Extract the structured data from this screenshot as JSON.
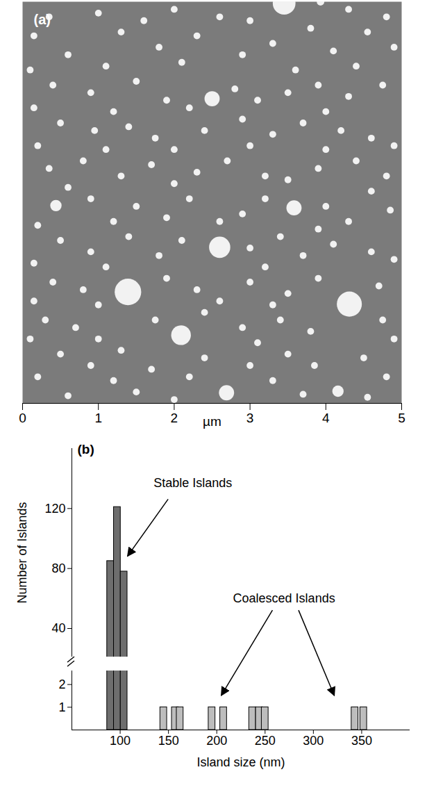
{
  "chart_data": [
    {
      "type": "scatter",
      "label": "(a)",
      "xlabel": "µm",
      "xlim": [
        0,
        5
      ],
      "xticks": [
        0,
        1,
        2,
        3,
        4,
        5
      ],
      "ylim": [
        0,
        5.3
      ],
      "tick_labels": "x",
      "color": "#f2f2f2",
      "points": [
        [
          3.45,
          5.28,
          0.3
        ],
        [
          2.5,
          4.02,
          0.2
        ],
        [
          3.58,
          2.58,
          0.2
        ],
        [
          0.44,
          2.61,
          0.15
        ],
        [
          2.6,
          2.06,
          0.28
        ],
        [
          1.39,
          1.47,
          0.35
        ],
        [
          4.31,
          1.31,
          0.33
        ],
        [
          2.09,
          0.9,
          0.26
        ],
        [
          2.69,
          0.14,
          0.2
        ],
        [
          4.16,
          0.16,
          0.15
        ],
        [
          3.93,
          5.3,
          0.1
        ],
        [
          0.35,
          5.1,
          0.09
        ],
        [
          1.0,
          5.15,
          0.09
        ],
        [
          1.6,
          5.05,
          0.09
        ],
        [
          2.0,
          5.2,
          0.09
        ],
        [
          2.6,
          5.1,
          0.09
        ],
        [
          3.0,
          5.05,
          0.09
        ],
        [
          4.3,
          5.2,
          0.09
        ],
        [
          4.8,
          5.1,
          0.09
        ],
        [
          0.15,
          4.85,
          0.09
        ],
        [
          1.3,
          4.9,
          0.09
        ],
        [
          2.3,
          4.85,
          0.09
        ],
        [
          3.8,
          4.95,
          0.09
        ],
        [
          4.55,
          4.9,
          0.09
        ],
        [
          0.6,
          4.6,
          0.09
        ],
        [
          1.8,
          4.7,
          0.09
        ],
        [
          2.9,
          4.6,
          0.09
        ],
        [
          3.3,
          4.75,
          0.09
        ],
        [
          4.1,
          4.65,
          0.09
        ],
        [
          4.9,
          4.7,
          0.09
        ],
        [
          0.1,
          4.4,
          0.09
        ],
        [
          1.1,
          4.45,
          0.09
        ],
        [
          2.1,
          4.5,
          0.09
        ],
        [
          3.6,
          4.4,
          0.09
        ],
        [
          4.4,
          4.45,
          0.09
        ],
        [
          0.4,
          4.2,
          0.09
        ],
        [
          0.9,
          4.1,
          0.09
        ],
        [
          1.5,
          4.25,
          0.09
        ],
        [
          1.9,
          4.0,
          0.09
        ],
        [
          2.8,
          4.15,
          0.09
        ],
        [
          3.1,
          4.0,
          0.09
        ],
        [
          3.5,
          4.1,
          0.09
        ],
        [
          3.9,
          4.2,
          0.09
        ],
        [
          4.3,
          4.05,
          0.09
        ],
        [
          4.75,
          4.2,
          0.09
        ],
        [
          0.15,
          3.9,
          0.09
        ],
        [
          1.2,
          3.85,
          0.09
        ],
        [
          2.2,
          3.9,
          0.09
        ],
        [
          4.0,
          3.85,
          0.09
        ],
        [
          0.5,
          3.7,
          0.09
        ],
        [
          0.95,
          3.6,
          0.09
        ],
        [
          1.4,
          3.65,
          0.09
        ],
        [
          1.75,
          3.5,
          0.09
        ],
        [
          2.4,
          3.6,
          0.09
        ],
        [
          2.9,
          3.75,
          0.09
        ],
        [
          3.3,
          3.55,
          0.09
        ],
        [
          3.7,
          3.7,
          0.09
        ],
        [
          4.2,
          3.6,
          0.09
        ],
        [
          4.6,
          3.5,
          0.09
        ],
        [
          0.2,
          3.4,
          0.09
        ],
        [
          1.1,
          3.35,
          0.09
        ],
        [
          2.0,
          3.35,
          0.09
        ],
        [
          3.0,
          3.4,
          0.09
        ],
        [
          4.0,
          3.35,
          0.09
        ],
        [
          4.9,
          3.4,
          0.09
        ],
        [
          0.35,
          3.1,
          0.09
        ],
        [
          0.8,
          3.2,
          0.09
        ],
        [
          1.3,
          3.0,
          0.09
        ],
        [
          1.7,
          3.15,
          0.09
        ],
        [
          2.3,
          3.05,
          0.09
        ],
        [
          2.7,
          3.2,
          0.09
        ],
        [
          3.2,
          3.0,
          0.09
        ],
        [
          3.9,
          3.1,
          0.09
        ],
        [
          4.4,
          3.2,
          0.09
        ],
        [
          4.8,
          3.0,
          0.09
        ],
        [
          0.6,
          2.85,
          0.09
        ],
        [
          2.0,
          2.9,
          0.09
        ],
        [
          3.5,
          2.95,
          0.09
        ],
        [
          4.6,
          2.8,
          0.09
        ],
        [
          0.9,
          2.7,
          0.09
        ],
        [
          1.5,
          2.6,
          0.09
        ],
        [
          1.9,
          2.45,
          0.09
        ],
        [
          2.2,
          2.7,
          0.09
        ],
        [
          2.9,
          2.5,
          0.09
        ],
        [
          3.2,
          2.7,
          0.09
        ],
        [
          4.0,
          2.6,
          0.09
        ],
        [
          4.3,
          2.4,
          0.09
        ],
        [
          4.85,
          2.55,
          0.09
        ],
        [
          0.2,
          2.35,
          0.09
        ],
        [
          1.2,
          2.4,
          0.09
        ],
        [
          2.6,
          2.4,
          0.09
        ],
        [
          3.9,
          2.3,
          0.09
        ],
        [
          0.5,
          2.15,
          0.09
        ],
        [
          0.9,
          2.0,
          0.09
        ],
        [
          1.4,
          2.2,
          0.09
        ],
        [
          1.8,
          1.95,
          0.09
        ],
        [
          2.1,
          2.15,
          0.09
        ],
        [
          3.0,
          2.05,
          0.09
        ],
        [
          3.4,
          2.2,
          0.09
        ],
        [
          3.7,
          1.95,
          0.09
        ],
        [
          4.1,
          2.1,
          0.09
        ],
        [
          4.6,
          2.0,
          0.09
        ],
        [
          0.15,
          1.85,
          0.09
        ],
        [
          1.1,
          1.8,
          0.09
        ],
        [
          3.2,
          1.8,
          0.09
        ],
        [
          4.9,
          1.9,
          0.09
        ],
        [
          0.4,
          1.6,
          0.09
        ],
        [
          0.8,
          1.5,
          0.09
        ],
        [
          1.9,
          1.65,
          0.09
        ],
        [
          2.3,
          1.5,
          0.09
        ],
        [
          3.0,
          1.6,
          0.09
        ],
        [
          3.5,
          1.45,
          0.09
        ],
        [
          3.9,
          1.65,
          0.09
        ],
        [
          4.7,
          1.55,
          0.09
        ],
        [
          0.15,
          1.35,
          0.09
        ],
        [
          1.0,
          1.3,
          0.09
        ],
        [
          2.6,
          1.35,
          0.09
        ],
        [
          3.3,
          1.3,
          0.09
        ],
        [
          0.3,
          1.1,
          0.09
        ],
        [
          0.7,
          1.0,
          0.09
        ],
        [
          1.75,
          1.1,
          0.09
        ],
        [
          2.4,
          1.2,
          0.09
        ],
        [
          2.9,
          1.0,
          0.09
        ],
        [
          3.4,
          1.1,
          0.09
        ],
        [
          3.8,
          0.95,
          0.09
        ],
        [
          4.75,
          1.1,
          0.09
        ],
        [
          0.1,
          0.85,
          0.09
        ],
        [
          1.0,
          0.85,
          0.09
        ],
        [
          3.1,
          0.8,
          0.09
        ],
        [
          4.9,
          0.85,
          0.09
        ],
        [
          0.5,
          0.65,
          0.09
        ],
        [
          0.9,
          0.5,
          0.09
        ],
        [
          1.3,
          0.7,
          0.09
        ],
        [
          1.7,
          0.45,
          0.09
        ],
        [
          2.4,
          0.6,
          0.09
        ],
        [
          3.0,
          0.5,
          0.09
        ],
        [
          3.5,
          0.65,
          0.09
        ],
        [
          3.85,
          0.5,
          0.09
        ],
        [
          4.5,
          0.6,
          0.09
        ],
        [
          0.2,
          0.35,
          0.09
        ],
        [
          1.2,
          0.3,
          0.09
        ],
        [
          2.2,
          0.35,
          0.09
        ],
        [
          3.3,
          0.3,
          0.09
        ],
        [
          4.8,
          0.35,
          0.09
        ],
        [
          0.6,
          0.1,
          0.09
        ],
        [
          1.5,
          0.15,
          0.09
        ],
        [
          2.0,
          0.05,
          0.09
        ],
        [
          3.7,
          0.12,
          0.09
        ],
        [
          4.55,
          0.08,
          0.09
        ]
      ]
    },
    {
      "type": "bar",
      "label": "(b)",
      "xlabel": "Island size (nm)",
      "ylabel": "Number of Islands",
      "xlim": [
        50,
        400
      ],
      "xticks": [
        100,
        150,
        200,
        250,
        300,
        350
      ],
      "ylim_upper": [
        21,
        160
      ],
      "yticks_upper": [
        40,
        80,
        120
      ],
      "ylim_lower": [
        0,
        2.6
      ],
      "yticks_lower": [
        1,
        2
      ],
      "x": [
        90,
        97,
        104,
        145,
        157,
        162,
        195,
        207,
        237,
        244,
        250,
        343,
        352
      ],
      "values": [
        85,
        121,
        78,
        1,
        1,
        1,
        1,
        1,
        1,
        1,
        1,
        1,
        1
      ],
      "colors": [
        "#6e6e6e",
        "#6e6e6e",
        "#6e6e6e",
        "#bdbdbd",
        "#bdbdbd",
        "#bdbdbd",
        "#bdbdbd",
        "#bdbdbd",
        "#bdbdbd",
        "#bdbdbd",
        "#bdbdbd",
        "#bdbdbd",
        "#bdbdbd"
      ],
      "annotations": [
        "Stable Islands",
        "Coalesced Islands"
      ]
    }
  ]
}
